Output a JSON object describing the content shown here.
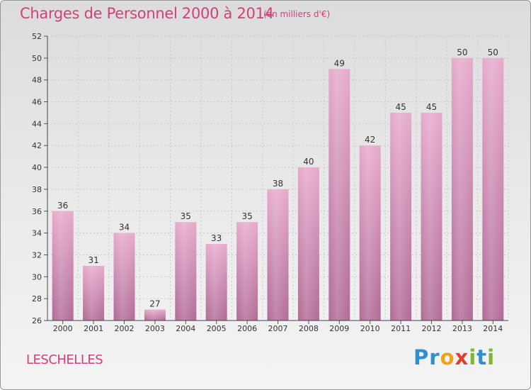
{
  "header": {
    "title": "Charges de Personnel 2000 à 2014",
    "subtitle": "(en milliers d'€)"
  },
  "footer": {
    "commune": "LESCHELLES",
    "logo": "Proxiti",
    "logo_letters": [
      {
        "ch": "P",
        "color": "#2f8fd0"
      },
      {
        "ch": "r",
        "color": "#2f8fd0"
      },
      {
        "ch": "o",
        "color": "#f2a21a"
      },
      {
        "ch": "x",
        "color": "#e33d2e"
      },
      {
        "ch": "i",
        "color": "#7ab82d"
      },
      {
        "ch": "t",
        "color": "#2f8fd0"
      },
      {
        "ch": "i",
        "color": "#7ab82d"
      }
    ]
  },
  "chart_data": {
    "type": "bar",
    "categories": [
      "2000",
      "2001",
      "2002",
      "2003",
      "2004",
      "2005",
      "2006",
      "2007",
      "2008",
      "2009",
      "2010",
      "2011",
      "2012",
      "2013",
      "2014"
    ],
    "values": [
      36,
      31,
      34,
      27,
      35,
      33,
      35,
      38,
      40,
      49,
      42,
      45,
      45,
      50,
      50
    ],
    "title": "Charges de Personnel 2000 à 2014",
    "subtitle": "(en milliers d'€)",
    "ylim": [
      26,
      52
    ],
    "yticks": [
      26,
      28,
      30,
      32,
      34,
      36,
      38,
      40,
      42,
      44,
      46,
      48,
      50,
      52
    ],
    "grid": true,
    "bar_color": "#d67aa8"
  }
}
